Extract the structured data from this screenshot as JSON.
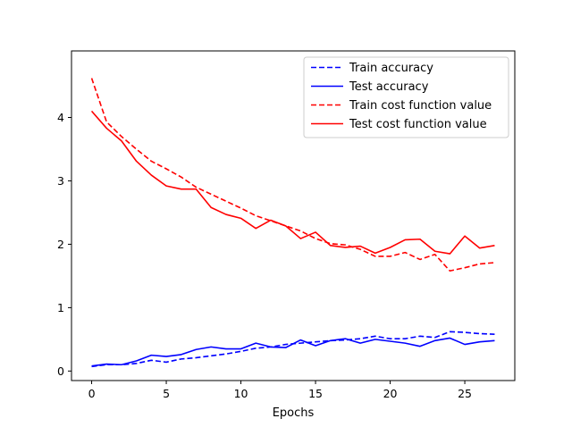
{
  "chart_data": {
    "type": "line",
    "title": "",
    "xlabel": "Epochs",
    "ylabel": "",
    "xlim": [
      -1.35,
      28.35
    ],
    "ylim": [
      -0.15,
      5.05
    ],
    "x_ticks": [
      0,
      5,
      10,
      15,
      20,
      25
    ],
    "y_ticks": [
      0,
      1,
      2,
      3,
      4
    ],
    "grid": false,
    "legend_position": "top-right",
    "x": [
      0,
      1,
      2,
      3,
      4,
      5,
      6,
      7,
      8,
      9,
      10,
      11,
      12,
      13,
      14,
      15,
      16,
      17,
      18,
      19,
      20,
      21,
      22,
      23,
      24,
      25,
      26,
      27
    ],
    "series": [
      {
        "name": "Train accuracy",
        "color": "#0000ff",
        "style": "dashed",
        "values": [
          0.07,
          0.1,
          0.1,
          0.12,
          0.17,
          0.14,
          0.19,
          0.21,
          0.24,
          0.27,
          0.31,
          0.36,
          0.38,
          0.42,
          0.44,
          0.46,
          0.48,
          0.49,
          0.51,
          0.55,
          0.51,
          0.51,
          0.55,
          0.53,
          0.62,
          0.61,
          0.59,
          0.58
        ]
      },
      {
        "name": "Test accuracy",
        "color": "#0000ff",
        "style": "solid",
        "values": [
          0.08,
          0.11,
          0.1,
          0.16,
          0.25,
          0.23,
          0.26,
          0.34,
          0.38,
          0.35,
          0.35,
          0.44,
          0.38,
          0.37,
          0.49,
          0.4,
          0.48,
          0.51,
          0.44,
          0.5,
          0.47,
          0.44,
          0.39,
          0.48,
          0.52,
          0.42,
          0.46,
          0.48
        ]
      },
      {
        "name": "Train cost function value",
        "color": "#ff0000",
        "style": "dashed",
        "values": [
          4.62,
          3.93,
          3.7,
          3.5,
          3.31,
          3.19,
          3.06,
          2.9,
          2.79,
          2.68,
          2.57,
          2.45,
          2.37,
          2.29,
          2.21,
          2.09,
          2.01,
          1.99,
          1.92,
          1.81,
          1.81,
          1.87,
          1.76,
          1.84,
          1.58,
          1.63,
          1.69,
          1.71
        ]
      },
      {
        "name": "Test cost function value",
        "color": "#ff0000",
        "style": "solid",
        "values": [
          4.1,
          3.83,
          3.63,
          3.31,
          3.09,
          2.92,
          2.87,
          2.87,
          2.58,
          2.47,
          2.41,
          2.25,
          2.38,
          2.29,
          2.09,
          2.19,
          1.98,
          1.95,
          1.97,
          1.86,
          1.95,
          2.07,
          2.08,
          1.89,
          1.85,
          2.13,
          1.94,
          1.98
        ]
      }
    ]
  }
}
